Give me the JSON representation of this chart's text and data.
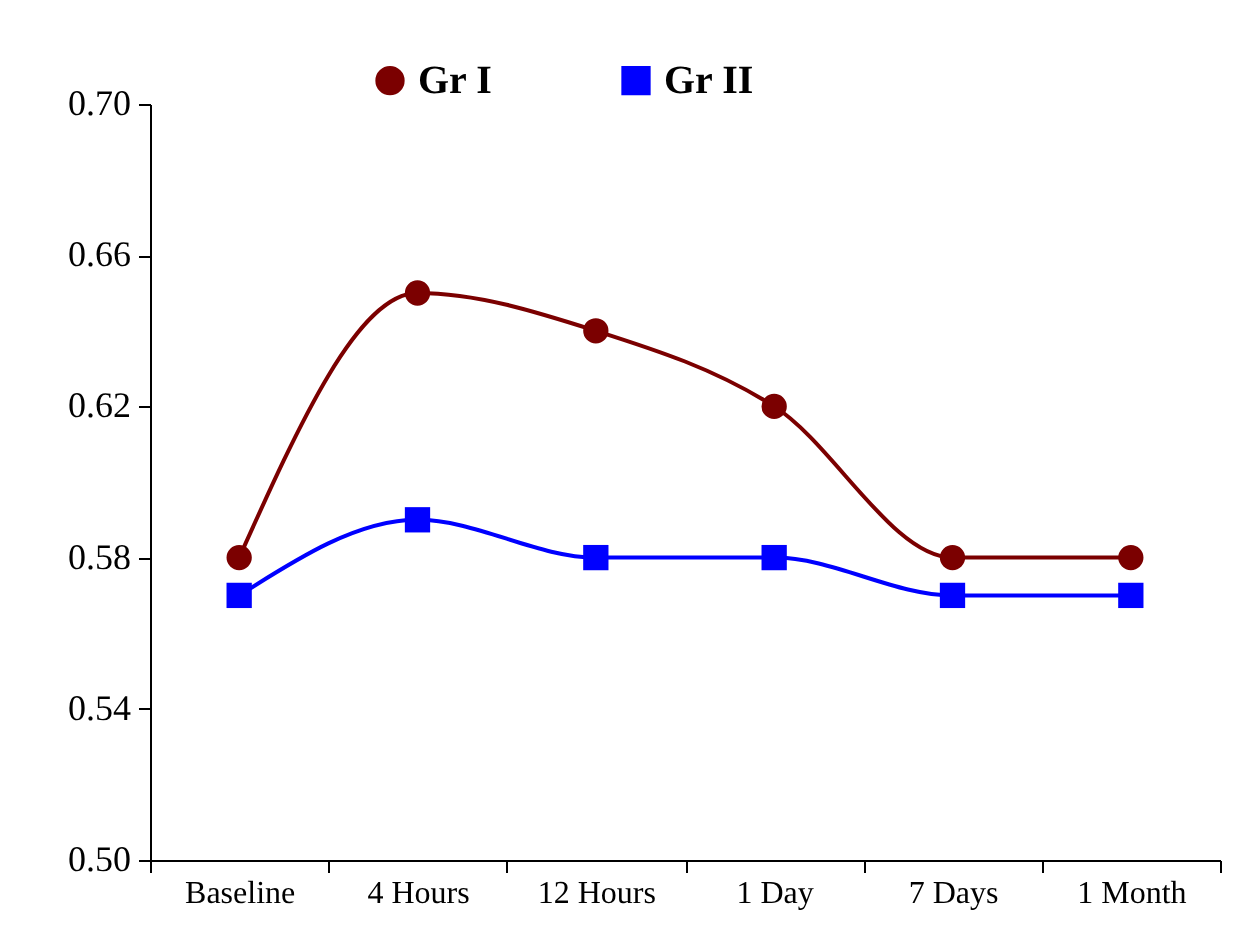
{
  "chart_data": {
    "type": "line",
    "categories": [
      "Baseline",
      "4 Hours",
      "12 Hours",
      "1 Day",
      "7 Days",
      "1 Month"
    ],
    "series": [
      {
        "name": "Gr I",
        "color": "#7b0000",
        "marker": "circle",
        "values": [
          0.58,
          0.65,
          0.64,
          0.62,
          0.58,
          0.58
        ]
      },
      {
        "name": "Gr II",
        "color": "#0000ff",
        "marker": "square",
        "values": [
          0.57,
          0.59,
          0.58,
          0.58,
          0.57,
          0.57
        ]
      }
    ],
    "ylim": [
      0.5,
      0.7
    ],
    "yticks": [
      {
        "value": 0.5,
        "label": "0.50"
      },
      {
        "value": 0.54,
        "label": "0.54"
      },
      {
        "value": 0.58,
        "label": "0.58"
      },
      {
        "value": 0.62,
        "label": "0.62"
      },
      {
        "value": 0.66,
        "label": "0.66"
      },
      {
        "value": 0.7,
        "label": "0.70"
      }
    ],
    "grid": false,
    "legend": "top",
    "line_style": "solid"
  }
}
